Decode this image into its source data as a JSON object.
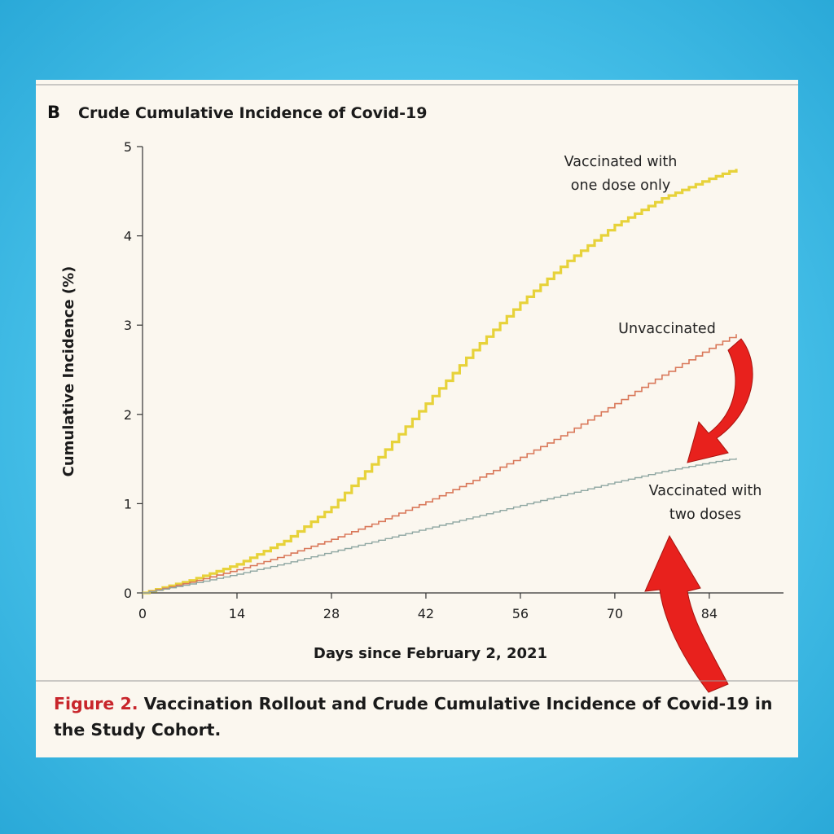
{
  "figure": {
    "panel_letter": "B",
    "caption_label": "Figure 2.",
    "caption_text": "Vaccination Rollout and Crude Cumulative Incidence of Covid-19 in the Study Cohort."
  },
  "chart_data": {
    "type": "line",
    "title": "Crude Cumulative Incidence of Covid-19",
    "xlabel": "Days since February 2, 2021",
    "ylabel": "Cumulative Incidence (%)",
    "xlim": [
      0,
      95
    ],
    "ylim": [
      0,
      5
    ],
    "xticks": [
      0,
      14,
      28,
      42,
      56,
      70,
      84
    ],
    "yticks": [
      0,
      1,
      2,
      3,
      4,
      5
    ],
    "x": [
      0,
      7,
      14,
      21,
      28,
      35,
      42,
      49,
      56,
      63,
      70,
      77,
      84,
      88
    ],
    "series": [
      {
        "name": "Vaccinated with one dose only",
        "color": "#e7d23a",
        "values": [
          0,
          0.14,
          0.32,
          0.58,
          0.96,
          1.52,
          2.12,
          2.72,
          3.25,
          3.72,
          4.12,
          4.42,
          4.64,
          4.75
        ]
      },
      {
        "name": "Unvaccinated",
        "color": "#d9785a",
        "values": [
          0,
          0.12,
          0.26,
          0.42,
          0.6,
          0.8,
          1.02,
          1.26,
          1.52,
          1.8,
          2.12,
          2.44,
          2.74,
          2.9
        ]
      },
      {
        "name": "Vaccinated with two doses",
        "color": "#8fa7a2",
        "values": [
          0,
          0.1,
          0.21,
          0.33,
          0.46,
          0.59,
          0.72,
          0.85,
          0.98,
          1.11,
          1.24,
          1.36,
          1.46,
          1.51
        ]
      }
    ],
    "annotations": [
      {
        "lines": [
          "Vaccinated with",
          "one dose only"
        ]
      },
      {
        "lines": [
          "Unvaccinated"
        ]
      },
      {
        "lines": [
          "Vaccinated with",
          "two doses"
        ]
      }
    ],
    "overlay_arrows": {
      "color": "#e8211d",
      "count": 2
    }
  }
}
